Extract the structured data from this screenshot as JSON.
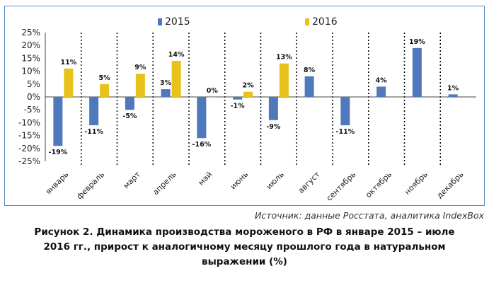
{
  "chart_data": {
    "type": "bar",
    "categories": [
      "январь",
      "февраль",
      "март",
      "апрель",
      "май",
      "июнь",
      "июль",
      "август",
      "сентябрь",
      "октябрь",
      "ноябрь",
      "декабрь"
    ],
    "series": [
      {
        "name": "2015",
        "color": "#4f79bc",
        "values": [
          -19,
          -11,
          -5,
          3,
          -16,
          -1,
          -9,
          8,
          -11,
          4,
          19,
          1
        ]
      },
      {
        "name": "2016",
        "color": "#e8c21b",
        "values": [
          11,
          5,
          9,
          14,
          0,
          2,
          13,
          null,
          null,
          null,
          null,
          null
        ]
      }
    ],
    "data_labels": {
      "2015": [
        "-19%",
        "-11%",
        "-5%",
        "3%",
        "-16%",
        "-1%",
        "-9%",
        "8%",
        "-11%",
        "4%",
        "19%",
        "1%"
      ],
      "2016": [
        "11%",
        "5%",
        "9%",
        "14%",
        "0%",
        "2%",
        "13%",
        "",
        "",
        "",
        "",
        ""
      ]
    },
    "ylim": [
      -25,
      25
    ],
    "yticks": [
      "-25%",
      "-20%",
      "-15%",
      "-10%",
      "-5%",
      "0%",
      "5%",
      "10%",
      "15%",
      "20%",
      "25%"
    ],
    "legend_position": "top",
    "category_separators": "dotted"
  },
  "source": "Источник: данные Росстата, аналитика IndexBox",
  "caption_lines": [
    "Рисунок 2. Динамика производства мороженого в РФ в январе 2015 – июле",
    "2016 гг., прирост к аналогичному месяцу прошлого года в натуральном",
    "выражении (%)"
  ]
}
